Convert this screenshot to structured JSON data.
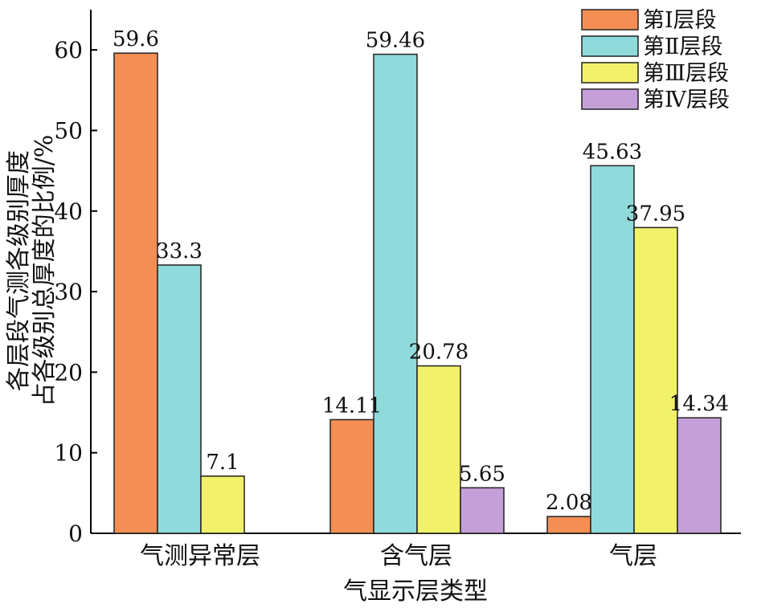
{
  "chart_data": {
    "type": "bar",
    "categories": [
      "气测异常层",
      "含气层",
      "气层"
    ],
    "series": [
      {
        "name": "第Ⅰ层段",
        "color": "#F48E55",
        "values": [
          59.6,
          14.11,
          2.08
        ]
      },
      {
        "name": "第Ⅱ层段",
        "color": "#8FDBDB",
        "values": [
          33.3,
          59.46,
          45.63
        ]
      },
      {
        "name": "第Ⅲ层段",
        "color": "#F2F26A",
        "values": [
          7.1,
          20.78,
          37.95
        ]
      },
      {
        "name": "第Ⅳ层段",
        "color": "#C49FD8",
        "values": [
          null,
          5.65,
          14.34
        ]
      }
    ],
    "data_labels": [
      [
        "59.6",
        "14.11",
        "2.08"
      ],
      [
        "33.3",
        "59.46",
        "45.63"
      ],
      [
        "7.1",
        "20.78",
        "37.95"
      ],
      [
        "",
        "5.65",
        "14.34"
      ]
    ],
    "xlabel": "气显示层类型",
    "ylabel": [
      "各层段气测各级别厚度",
      "占各级别总厚度的比例/%"
    ],
    "ylim": [
      0,
      65
    ],
    "yticks": [
      0,
      10,
      20,
      30,
      40,
      50,
      60
    ],
    "grid": false,
    "legend_position": "top-right"
  }
}
